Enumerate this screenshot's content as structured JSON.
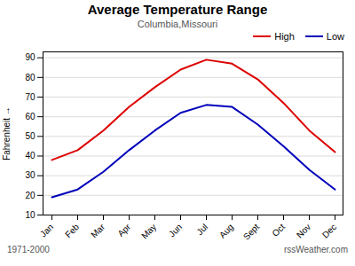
{
  "chart_data": {
    "type": "line",
    "title": "Average Temperature Range",
    "subtitle": "Columbia,Missouri",
    "ylabel": "Fahrenheit",
    "categories": [
      "Jan",
      "Feb",
      "Mar",
      "Apr",
      "May",
      "Jun",
      "Jul",
      "Aug",
      "Sept",
      "Oct",
      "Nov",
      "Dec"
    ],
    "series": [
      {
        "name": "High",
        "color": "#dd0000",
        "values": [
          38,
          43,
          53,
          65,
          75,
          84,
          89,
          87,
          79,
          67,
          53,
          42
        ]
      },
      {
        "name": "Low",
        "color": "#0000bb",
        "values": [
          19,
          23,
          32,
          43,
          53,
          62,
          66,
          65,
          56,
          45,
          33,
          23
        ]
      }
    ],
    "ylim": [
      10,
      93
    ],
    "yticks": [
      10,
      20,
      30,
      40,
      50,
      60,
      70,
      80,
      90
    ],
    "grid": true,
    "legend": "upper right",
    "annotations": [
      "1971-2000",
      "rssWeather.com"
    ]
  }
}
